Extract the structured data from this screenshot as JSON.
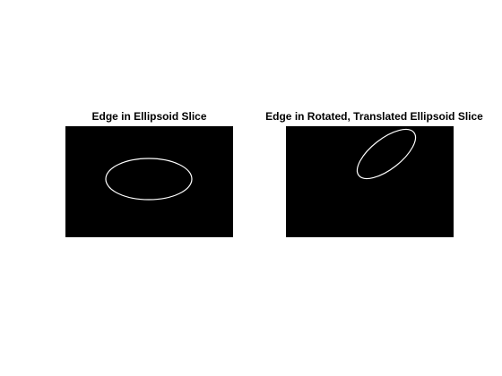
{
  "figure": {
    "panels": [
      {
        "title": "Edge in Ellipsoid Slice",
        "background_color": "#000000",
        "edge_color": "#ffffff"
      },
      {
        "title": "Edge in Rotated, Translated Ellipsoid Slice",
        "background_color": "#000000",
        "edge_color": "#ffffff"
      }
    ]
  }
}
